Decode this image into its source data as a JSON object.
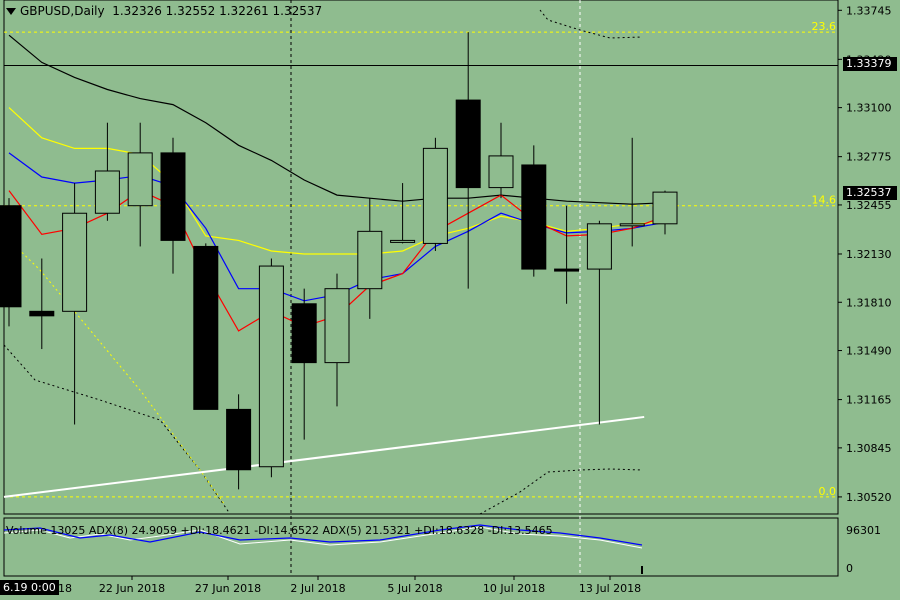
{
  "header": {
    "symbol_tf": "GBPUSD,Daily",
    "ohlc": "1.32326 1.32552 1.32261 1.32537"
  },
  "indicator_label": "Volume 13025  ADX(8) 24.9059 +DI:18.4621 -DI:14.6522  ADX(5) 21.5321 +DI:18.6328 -DI:13.5465",
  "price_axis": [
    "1.33745",
    "1.33420",
    "1.33100",
    "1.32775",
    "1.32455",
    "1.32130",
    "1.31810",
    "1.31490",
    "1.31165",
    "1.30845",
    "1.30520"
  ],
  "price_boxes": {
    "line_level": "1.33379",
    "bid": "1.32537"
  },
  "volume_axis": {
    "top": "96301",
    "bottom": "0"
  },
  "time_axis": [
    "22 Jun 2018",
    "27 Jun 2018",
    "2 Jul 2018",
    "5 Jul 2018",
    "10 Jul 2018",
    "13 Jul 2018"
  ],
  "time_axis_left_clip": "18",
  "cursor_time": "6.19 0:00",
  "fib_levels": [
    {
      "label": "23.6",
      "price": 1.336
    },
    {
      "label": "14.6",
      "price": 1.3245
    },
    {
      "label": "0.0",
      "price": 1.3052
    }
  ],
  "colors": {
    "background": "#8fbc8f",
    "bull": "#8fbc8f",
    "bear": "#000000",
    "fib": "#ffff00",
    "trendline": "#ffffff",
    "ma_fast": "#ff0000",
    "ma_mid": "#0000ff",
    "ma_slow": "#ffff00",
    "ma_long": "#000000"
  },
  "chart_data": {
    "type": "candlestick",
    "symbol": "GBPUSD",
    "timeframe": "Daily",
    "ylim": [
      1.3042,
      1.338
    ],
    "candles": [
      {
        "o": 1.3245,
        "h": 1.325,
        "l": 1.3165,
        "c": 1.3178
      },
      {
        "o": 1.3175,
        "h": 1.321,
        "l": 1.315,
        "c": 1.3172
      },
      {
        "o": 1.3175,
        "h": 1.326,
        "l": 1.31,
        "c": 1.324
      },
      {
        "o": 1.324,
        "h": 1.33,
        "l": 1.3235,
        "c": 1.3268
      },
      {
        "o": 1.3245,
        "h": 1.33,
        "l": 1.3218,
        "c": 1.328
      },
      {
        "o": 1.328,
        "h": 1.329,
        "l": 1.32,
        "c": 1.3222
      },
      {
        "o": 1.3218,
        "h": 1.322,
        "l": 1.311,
        "c": 1.311
      },
      {
        "o": 1.311,
        "h": 1.312,
        "l": 1.3057,
        "c": 1.307
      },
      {
        "o": 1.3072,
        "h": 1.321,
        "l": 1.3065,
        "c": 1.3205
      },
      {
        "o": 1.318,
        "h": 1.319,
        "l": 1.309,
        "c": 1.3141
      },
      {
        "o": 1.3141,
        "h": 1.32,
        "l": 1.3112,
        "c": 1.319
      },
      {
        "o": 1.319,
        "h": 1.325,
        "l": 1.317,
        "c": 1.3228
      },
      {
        "o": 1.3222,
        "h": 1.326,
        "l": 1.322,
        "c": 1.3222
      },
      {
        "o": 1.322,
        "h": 1.329,
        "l": 1.3215,
        "c": 1.3283
      },
      {
        "o": 1.3315,
        "h": 1.336,
        "l": 1.319,
        "c": 1.3257
      },
      {
        "o": 1.3257,
        "h": 1.33,
        "l": 1.325,
        "c": 1.3278
      },
      {
        "o": 1.3272,
        "h": 1.3285,
        "l": 1.3198,
        "c": 1.3203
      },
      {
        "o": 1.3203,
        "h": 1.3245,
        "l": 1.318,
        "c": 1.3202
      },
      {
        "o": 1.3203,
        "h": 1.3235,
        "l": 1.31,
        "c": 1.3233
      },
      {
        "o": 1.3233,
        "h": 1.329,
        "l": 1.3218,
        "c": 1.3233
      },
      {
        "o": 1.3233,
        "h": 1.3255,
        "l": 1.3226,
        "c": 1.3254
      }
    ],
    "ma_slow": [
      1.331,
      1.329,
      1.3283,
      1.3283,
      1.3279,
      1.326,
      1.3225,
      1.3222,
      1.3215,
      1.3213,
      1.3213,
      1.3213,
      1.3215,
      1.3225,
      1.323,
      1.3238,
      1.3234,
      1.3228,
      1.323,
      1.3233,
      1.3234
    ],
    "ma_mid": [
      1.328,
      1.3264,
      1.326,
      1.3262,
      1.3265,
      1.3258,
      1.323,
      1.319,
      1.319,
      1.3182,
      1.3186,
      1.3196,
      1.32,
      1.3218,
      1.3228,
      1.324,
      1.3233,
      1.3227,
      1.3228,
      1.323,
      1.3234
    ],
    "ma_fast": [
      1.3255,
      1.3226,
      1.323,
      1.324,
      1.3255,
      1.3245,
      1.32,
      1.3162,
      1.3175,
      1.3165,
      1.3172,
      1.3192,
      1.32,
      1.3228,
      1.324,
      1.3252,
      1.3235,
      1.3225,
      1.3226,
      1.323,
      1.3238
    ],
    "ma_long": [
      1.3358,
      1.334,
      1.333,
      1.3322,
      1.3316,
      1.3312,
      1.33,
      1.3285,
      1.3275,
      1.3262,
      1.3252,
      1.325,
      1.3248,
      1.325,
      1.325,
      1.3252,
      1.325,
      1.3248,
      1.3247,
      1.3246,
      1.3247
    ],
    "horizontal_line": 1.33379,
    "trendline": {
      "from_index": 0,
      "from_price": 1.3052,
      "to_index": 19,
      "to_price": 1.3105
    }
  }
}
